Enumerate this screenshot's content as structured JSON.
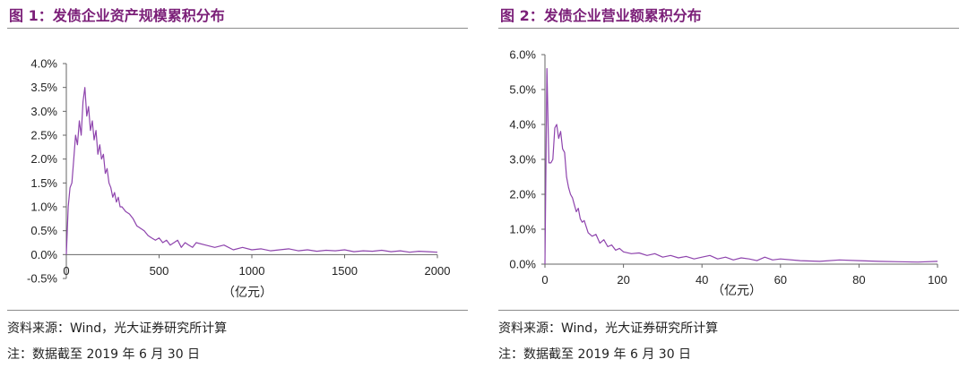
{
  "figures": [
    {
      "id": "left",
      "title": "图 1：发债企业资产规模累积分布",
      "source": "资料来源：Wind，光大证券研究所计算",
      "note": "注：数据截至 2019 年 6 月 30 日",
      "chart_data": {
        "type": "line",
        "title": "图 1：发债企业资产规模累积分布",
        "xlabel": "（亿元）",
        "ylabel": "",
        "xlim": [
          0,
          2000
        ],
        "ylim": [
          -0.5,
          4.0
        ],
        "xticks": [
          0,
          500,
          1000,
          1500,
          2000
        ],
        "xtick_labels": [
          "0",
          "500",
          "1000",
          "1500",
          "2000"
        ],
        "yticks": [
          -0.5,
          0.0,
          0.5,
          1.0,
          1.5,
          2.0,
          2.5,
          3.0,
          3.5,
          4.0
        ],
        "ytick_labels": [
          "-0.5%",
          "0.0%",
          "0.5%",
          "1.0%",
          "1.5%",
          "2.0%",
          "2.5%",
          "3.0%",
          "3.5%",
          "4.0%"
        ],
        "grid": false,
        "color": "#8e44ad",
        "series": [
          {
            "x": [
              0,
              10,
              20,
              30,
              40,
              50,
              60,
              70,
              80,
              90,
              100,
              110,
              120,
              130,
              140,
              150,
              160,
              170,
              180,
              190,
              200,
              210,
              220,
              230,
              240,
              250,
              260,
              270,
              280,
              290,
              300,
              320,
              340,
              360,
              380,
              400,
              420,
              440,
              460,
              480,
              500,
              520,
              540,
              560,
              580,
              600,
              620,
              640,
              660,
              680,
              700,
              750,
              800,
              850,
              900,
              950,
              1000,
              1050,
              1100,
              1150,
              1200,
              1250,
              1300,
              1350,
              1400,
              1450,
              1500,
              1550,
              1600,
              1650,
              1700,
              1750,
              1800,
              1850,
              1900,
              1950,
              2000
            ],
            "y": [
              0.0,
              1.0,
              1.4,
              1.5,
              2.0,
              2.5,
              2.3,
              2.8,
              2.5,
              3.2,
              3.5,
              2.9,
              3.1,
              2.6,
              2.8,
              2.4,
              2.6,
              2.1,
              2.3,
              2.0,
              2.1,
              1.7,
              1.8,
              1.5,
              1.4,
              1.2,
              1.3,
              1.1,
              1.2,
              1.0,
              1.0,
              0.9,
              0.85,
              0.75,
              0.6,
              0.55,
              0.5,
              0.4,
              0.35,
              0.3,
              0.35,
              0.25,
              0.3,
              0.2,
              0.25,
              0.3,
              0.15,
              0.25,
              0.2,
              0.15,
              0.25,
              0.2,
              0.15,
              0.2,
              0.1,
              0.15,
              0.1,
              0.12,
              0.08,
              0.1,
              0.12,
              0.08,
              0.1,
              0.07,
              0.09,
              0.08,
              0.1,
              0.06,
              0.08,
              0.07,
              0.09,
              0.06,
              0.08,
              0.05,
              0.07,
              0.06,
              0.05
            ]
          }
        ]
      }
    },
    {
      "id": "right",
      "title": "图 2：发债企业营业额累积分布",
      "source": "资料来源：Wind，光大证券研究所计算",
      "note": "注：数据截至 2019 年 6 月 30 日",
      "chart_data": {
        "type": "line",
        "title": "图 2：发债企业营业额累积分布",
        "xlabel": "（亿元）",
        "ylabel": "",
        "xlim": [
          0,
          100
        ],
        "ylim": [
          0.0,
          6.0
        ],
        "xticks": [
          0,
          20,
          40,
          60,
          80,
          100
        ],
        "xtick_labels": [
          "0",
          "20",
          "40",
          "60",
          "80",
          "100"
        ],
        "yticks": [
          0.0,
          1.0,
          2.0,
          3.0,
          4.0,
          5.0,
          6.0
        ],
        "ytick_labels": [
          "0.0%",
          "1.0%",
          "2.0%",
          "3.0%",
          "4.0%",
          "5.0%",
          "6.0%"
        ],
        "grid": false,
        "color": "#8e44ad",
        "series": [
          {
            "x": [
              0,
              0.5,
              1,
              1.5,
              2,
              2.5,
              3,
              3.5,
              4,
              4.5,
              5,
              5.5,
              6,
              6.5,
              7,
              7.5,
              8,
              8.5,
              9,
              9.5,
              10,
              11,
              12,
              13,
              14,
              15,
              16,
              17,
              18,
              19,
              20,
              22,
              24,
              26,
              28,
              30,
              32,
              34,
              36,
              38,
              40,
              42,
              44,
              46,
              48,
              50,
              52,
              54,
              56,
              58,
              60,
              65,
              70,
              75,
              80,
              85,
              90,
              95,
              100
            ],
            "y": [
              0.0,
              5.6,
              2.9,
              2.9,
              3.0,
              3.9,
              4.0,
              3.6,
              3.8,
              3.3,
              3.2,
              2.5,
              2.2,
              2.0,
              1.9,
              1.7,
              1.5,
              1.6,
              1.3,
              1.2,
              1.25,
              0.9,
              0.8,
              0.85,
              0.6,
              0.7,
              0.5,
              0.55,
              0.4,
              0.45,
              0.35,
              0.3,
              0.32,
              0.25,
              0.3,
              0.2,
              0.25,
              0.18,
              0.22,
              0.15,
              0.2,
              0.25,
              0.15,
              0.2,
              0.12,
              0.18,
              0.15,
              0.1,
              0.2,
              0.12,
              0.15,
              0.1,
              0.08,
              0.12,
              0.1,
              0.08,
              0.07,
              0.06,
              0.08
            ]
          }
        ]
      }
    }
  ]
}
